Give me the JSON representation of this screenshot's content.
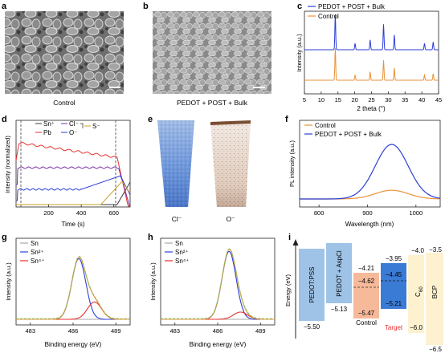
{
  "panels": {
    "a": {
      "letter": "a",
      "caption": "Control"
    },
    "b": {
      "letter": "b",
      "caption": "PEDOT + POST + Bulk"
    },
    "c": {
      "letter": "c",
      "chart_data": {
        "type": "line",
        "xlabel": "2 theta (°)",
        "ylabel": "Intensity (a.u.)",
        "xlim": [
          5,
          45
        ],
        "xticks": [
          5,
          10,
          15,
          20,
          25,
          30,
          35,
          40,
          45
        ],
        "peaks": [
          14.2,
          20.1,
          24.6,
          28.6,
          31.8,
          40.8,
          43.4
        ],
        "series": [
          {
            "name": "PEDOT + POST + Bulk",
            "color": "#2b3fd6",
            "heights": [
              1.0,
              0.18,
              0.28,
              0.72,
              0.42,
              0.18,
              0.22
            ]
          },
          {
            "name": "Control",
            "color": "#e8923a",
            "heights": [
              1.0,
              0.15,
              0.26,
              0.62,
              0.38,
              0.16,
              0.2
            ]
          }
        ]
      }
    },
    "d": {
      "letter": "d",
      "chart_data": {
        "type": "line",
        "xlabel": "Time (s)",
        "ylabel": "Intensity (normalized)",
        "xlim": [
          0,
          700
        ],
        "xticks": [
          200,
          400,
          600
        ],
        "legend": [
          "Sn⁺",
          "Cl⁻",
          "S⁻",
          "Pb",
          "O⁻"
        ],
        "series": [
          {
            "name": "Pb",
            "color": "#e8312f"
          },
          {
            "name": "Sn⁺",
            "color": "#3a3a3a"
          },
          {
            "name": "Cl⁻",
            "color": "#7b2fa8"
          },
          {
            "name": "O⁻",
            "color": "#2b3fd6"
          },
          {
            "name": "S⁻",
            "color": "#c9a227"
          }
        ]
      }
    },
    "e": {
      "letter": "e",
      "labels": [
        "Cl⁻",
        "O⁻"
      ]
    },
    "f": {
      "letter": "f",
      "chart_data": {
        "type": "line",
        "xlabel": "Wavelength (nm)",
        "ylabel": "PL intensity (a.u.)",
        "xlim": [
          760,
          1050
        ],
        "xticks": [
          800,
          900,
          1000
        ],
        "series": [
          {
            "name": "Control",
            "color": "#e8923a",
            "peak_x": 950,
            "peak_y": 0.16
          },
          {
            "name": "PEDOT + POST + Bulk",
            "color": "#2b3fd6",
            "peak_x": 950,
            "peak_y": 1.0
          }
        ]
      }
    },
    "g": {
      "letter": "g",
      "chart_data": {
        "type": "line",
        "xlabel": "Binding energy (eV)",
        "ylabel": "Intensity (a.u.)",
        "xlim": [
          482,
          490
        ],
        "xticks": [
          483,
          486,
          489
        ],
        "legend": [
          "Sn",
          "Sn²⁺",
          "Sn⁴⁺"
        ],
        "components": [
          {
            "name": "Sn",
            "color": "#aaaaaa",
            "center": 486.5,
            "height": 0.0
          },
          {
            "name": "Sn²⁺",
            "color": "#2b3fd6",
            "center": 486.4,
            "height": 0.84
          },
          {
            "name": "Sn⁴⁺",
            "color": "#e8312f",
            "center": 487.5,
            "height": 0.24
          }
        ]
      }
    },
    "h": {
      "letter": "h",
      "chart_data": {
        "type": "line",
        "xlabel": "Binding energy (eV)",
        "ylabel": "Intensity (a.u.)",
        "xlim": [
          482,
          490
        ],
        "xticks": [
          483,
          486,
          489
        ],
        "legend": [
          "Sn",
          "Sn²⁺",
          "Sn⁴⁺"
        ],
        "components": [
          {
            "name": "Sn",
            "color": "#aaaaaa",
            "center": 486.8,
            "height": 0.0
          },
          {
            "name": "Sn²⁺",
            "color": "#2b3fd6",
            "center": 486.8,
            "height": 0.94
          },
          {
            "name": "Sn⁴⁺",
            "color": "#e8312f",
            "center": 487.6,
            "height": 0.1
          }
        ]
      }
    },
    "i": {
      "letter": "i",
      "ylabel": "Energy (eV)",
      "bars": [
        {
          "name": "PEDOT:PSS",
          "color": "#9ec3e6",
          "top": "",
          "bottom": "−5.50"
        },
        {
          "name": "PEDOT + AspCl",
          "color": "#9ec3e6",
          "top": "",
          "bottom": "−5.13"
        },
        {
          "name": "Control",
          "color": "#f6b99a",
          "top": "−4.21",
          "mid": "−4.62",
          "bottom": "−5.47"
        },
        {
          "name": "Target",
          "color": "#3a7bd5",
          "top": "−3.95",
          "mid": "−4.45",
          "bottom": "−5.21"
        },
        {
          "name": "C60",
          "color": "#fdf1cf",
          "top": "−4.0",
          "bottom": "−6.0"
        },
        {
          "name": "BCP",
          "color": "#fdf1cf",
          "top": "−3.5",
          "bottom": "−6.5"
        }
      ],
      "control_label": "Control",
      "target_label": "Target",
      "c60_label": "C",
      "c60_sub": "60",
      "target_color": "#e8312f"
    }
  }
}
